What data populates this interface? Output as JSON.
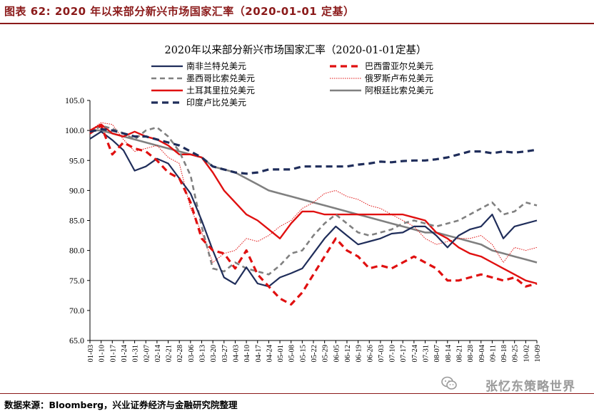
{
  "header": {
    "figure_title": "图表 62:  2020 年以来部分新兴市场国家汇率（2020-01-01 定基）"
  },
  "footer": {
    "source": "数据来源：Bloomberg，兴业证券经济与金融研究院整理"
  },
  "watermark": {
    "text": "张忆东策略世界",
    "icon": "wechat-icon"
  },
  "chart_data": {
    "type": "line",
    "title": "2020年以来部分新兴市场国家汇率（2020-01-01定基）",
    "xlabel": "",
    "ylabel": "",
    "ylim": [
      65,
      105
    ],
    "yticks": [
      "65.0",
      "70.0",
      "75.0",
      "80.0",
      "85.0",
      "90.0",
      "95.0",
      "100.0",
      "105.0"
    ],
    "grid": false,
    "legend_position": "top",
    "x": [
      "01-03",
      "01-10",
      "01-17",
      "01-24",
      "01-31",
      "02-07",
      "02-14",
      "02-21",
      "02-28",
      "03-06",
      "03-13",
      "03-20",
      "03-27",
      "04-03",
      "04-10",
      "04-17",
      "04-24",
      "05-01",
      "05-08",
      "05-15",
      "05-22",
      "05-29",
      "06-05",
      "06-12",
      "06-19",
      "06-26",
      "07-03",
      "07-10",
      "07-17",
      "07-24",
      "07-31",
      "08-07",
      "08-14",
      "08-21",
      "08-28",
      "09-04",
      "09-11",
      "09-18",
      "09-25",
      "10-02",
      "10-09"
    ],
    "series": [
      {
        "name": "南非兰特兑美元",
        "color": "#1f2d5a",
        "style": "solid",
        "width": 2.2,
        "values": [
          98.6,
          99.8,
          98.4,
          96.7,
          93.3,
          94.0,
          95.3,
          94.5,
          92.0,
          89.5,
          85.0,
          80.0,
          75.5,
          74.4,
          77.2,
          74.5,
          74.0,
          75.5,
          76.2,
          77.0,
          79.5,
          82.0,
          84.0,
          82.5,
          81.0,
          81.5,
          82.0,
          82.8,
          83.0,
          84.0,
          84.0,
          82.5,
          80.5,
          82.5,
          83.5,
          84.0,
          86.0,
          82.0,
          84.0,
          84.5,
          85.0
        ]
      },
      {
        "name": "巴西雷亚尔兑美元",
        "color": "#e01010",
        "style": "dash",
        "dash": "9,6",
        "width": 3.2,
        "values": [
          99.5,
          100.8,
          96.0,
          98.0,
          97.0,
          96.5,
          95.0,
          93.0,
          92.0,
          88.0,
          82.0,
          80.0,
          79.5,
          77.0,
          80.0,
          76.0,
          74.0,
          72.0,
          71.0,
          73.0,
          76.0,
          79.0,
          82.0,
          80.0,
          79.0,
          77.0,
          77.5,
          77.0,
          78.0,
          79.0,
          78.0,
          77.0,
          75.0,
          75.0,
          75.5,
          76.0,
          75.5,
          75.0,
          75.5,
          74.0,
          74.5
        ]
      },
      {
        "name": "墨西哥比索兑美元",
        "color": "#808080",
        "style": "dash",
        "dash": "7,5",
        "width": 2.6,
        "values": [
          99.5,
          100.8,
          100.3,
          99.5,
          98.5,
          100.0,
          100.5,
          99.0,
          96.5,
          92.5,
          84.0,
          77.0,
          76.5,
          78.0,
          77.0,
          76.5,
          76.0,
          77.5,
          79.5,
          80.0,
          82.5,
          84.5,
          86.0,
          84.5,
          83.0,
          82.5,
          83.0,
          83.5,
          84.5,
          85.0,
          84.5,
          84.0,
          84.5,
          85.0,
          86.0,
          87.0,
          88.0,
          86.0,
          86.5,
          88.0,
          87.5
        ]
      },
      {
        "name": "俄罗斯卢布兑美元",
        "color": "#e01010",
        "style": "dot",
        "dash": "1.5,1.5",
        "width": 1.0,
        "values": [
          100.0,
          101.3,
          101.0,
          98.5,
          96.5,
          97.0,
          97.5,
          95.5,
          94.5,
          87.0,
          83.0,
          78.0,
          79.5,
          80.0,
          82.0,
          81.5,
          82.5,
          84.0,
          85.0,
          87.0,
          88.0,
          89.5,
          90.0,
          89.0,
          88.5,
          87.5,
          87.0,
          86.0,
          85.0,
          84.0,
          82.0,
          81.0,
          81.5,
          82.0,
          82.0,
          82.5,
          81.0,
          78.0,
          80.5,
          80.0,
          80.5
        ]
      },
      {
        "name": "土耳其里拉兑美元",
        "color": "#e01010",
        "style": "solid",
        "width": 2.4,
        "values": [
          100.0,
          101.0,
          99.5,
          99.0,
          99.8,
          99.0,
          98.5,
          97.5,
          96.0,
          96.0,
          95.5,
          93.0,
          90.0,
          88.0,
          86.0,
          85.0,
          83.5,
          82.0,
          84.5,
          86.5,
          86.5,
          86.0,
          86.0,
          86.0,
          86.0,
          86.0,
          86.0,
          86.0,
          86.0,
          85.5,
          85.0,
          83.0,
          82.0,
          80.5,
          79.5,
          79.0,
          78.0,
          77.0,
          76.0,
          75.0,
          74.5
        ]
      },
      {
        "name": "阿根廷比索兑美元",
        "color": "#808080",
        "style": "solid",
        "width": 2.6,
        "values": [
          100.0,
          100.0,
          99.5,
          99.0,
          98.5,
          98.0,
          97.5,
          97.0,
          96.5,
          96.0,
          95.5,
          94.0,
          93.5,
          93.0,
          92.0,
          91.0,
          90.0,
          89.5,
          89.0,
          88.5,
          88.0,
          87.5,
          87.0,
          86.5,
          86.0,
          85.5,
          85.0,
          84.5,
          84.0,
          83.5,
          83.0,
          83.0,
          82.5,
          82.0,
          81.5,
          81.0,
          80.0,
          79.5,
          79.0,
          78.5,
          78.0
        ]
      },
      {
        "name": "印度卢比兑美元",
        "color": "#1f2d5a",
        "style": "dash",
        "dash": "9,6",
        "width": 3.2,
        "values": [
          99.8,
          100.2,
          100.0,
          99.5,
          99.0,
          99.0,
          98.5,
          98.0,
          97.5,
          96.5,
          95.5,
          94.0,
          93.5,
          93.0,
          92.8,
          93.0,
          93.5,
          93.5,
          93.5,
          94.0,
          94.0,
          94.0,
          94.0,
          94.0,
          94.3,
          94.5,
          94.8,
          94.7,
          94.9,
          95.0,
          95.0,
          95.2,
          95.5,
          96.0,
          96.5,
          96.5,
          96.2,
          96.5,
          96.3,
          96.5,
          96.8
        ]
      }
    ]
  }
}
